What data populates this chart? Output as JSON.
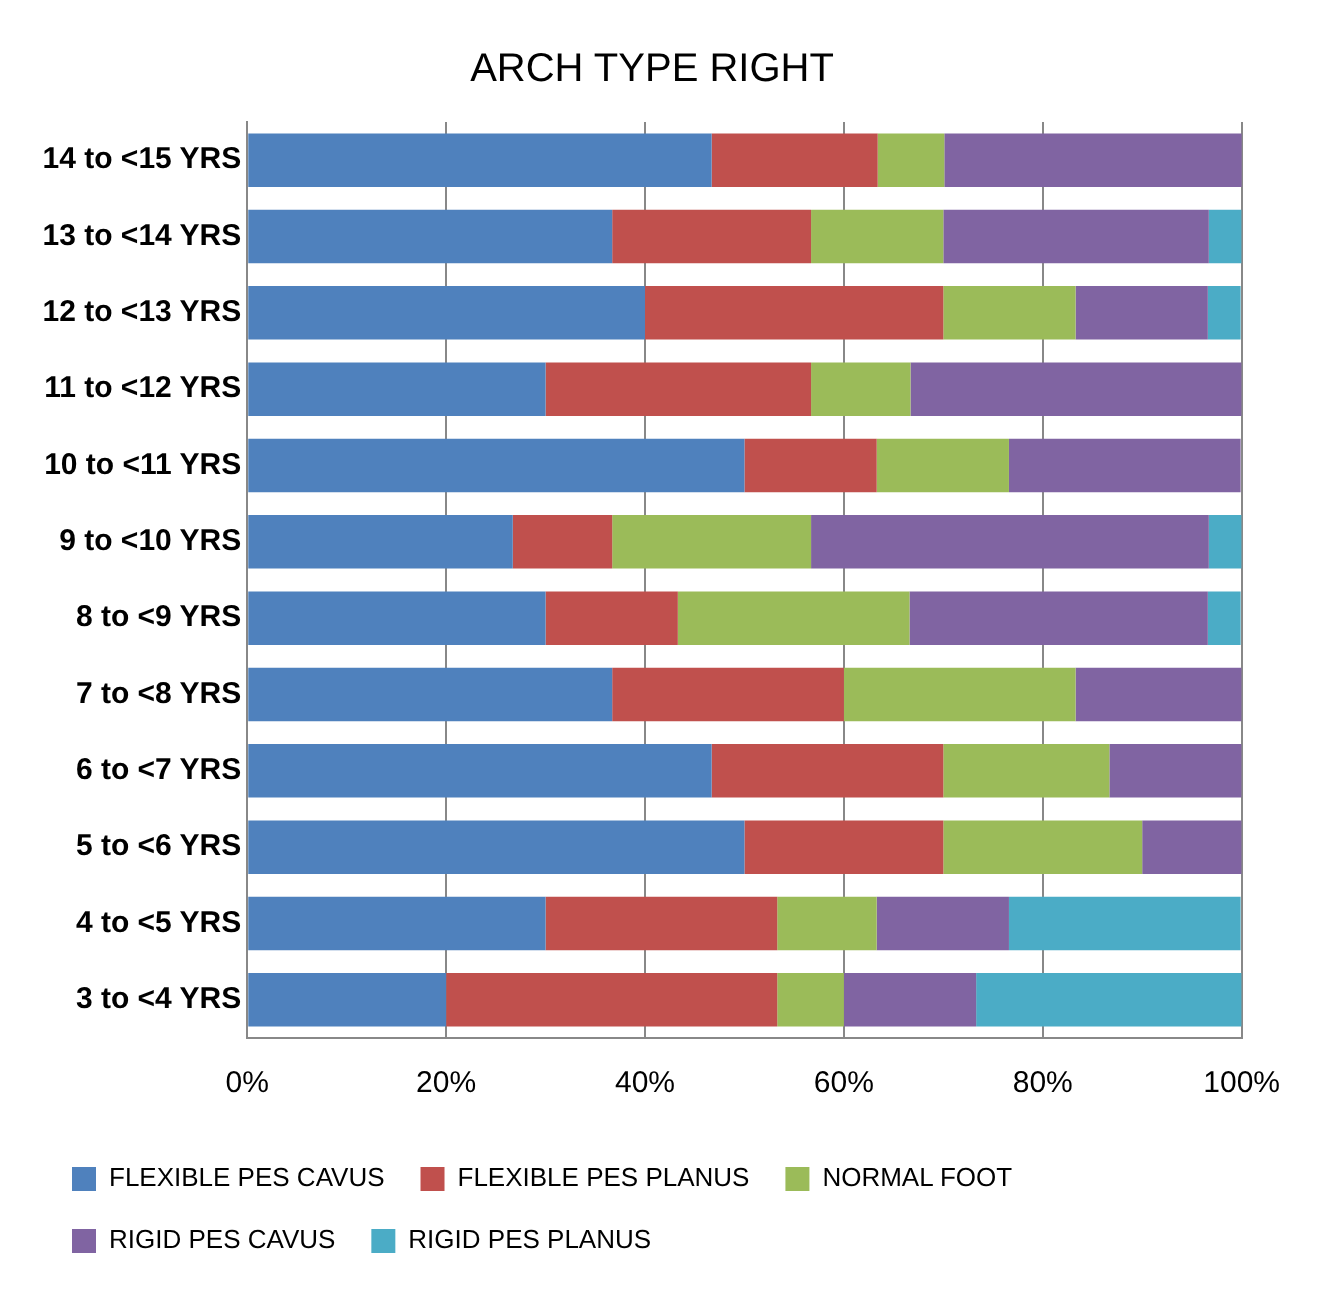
{
  "chart_data": {
    "type": "bar",
    "title": "ARCH TYPE RIGHT",
    "orientation": "horizontal",
    "stacked": true,
    "categories": [
      "14 to <15 YRS",
      "13 to <14 YRS",
      "12 to <13 YRS",
      "11 to <12 YRS",
      "10 to <11 YRS",
      "9 to <10 YRS",
      "8 to <9 YRS",
      "7 to <8 YRS",
      "6 to <7 YRS",
      "5 to <6 YRS",
      "4 to <5 YRS",
      "3 to <4 YRS"
    ],
    "series": [
      {
        "name": "FLEXIBLE PES CAVUS",
        "color": "#4f81bd",
        "values": [
          46.7,
          36.7,
          40,
          30,
          50,
          26.7,
          30,
          36.7,
          46.7,
          50,
          30,
          20
        ]
      },
      {
        "name": "FLEXIBLE PES PLANUS",
        "color": "#c0504d",
        "values": [
          16.7,
          20,
          30,
          26.7,
          13.3,
          10,
          13.3,
          23.3,
          23.3,
          20,
          23.3,
          33.3
        ]
      },
      {
        "name": "NORMAL FOOT",
        "color": "#9bbb59",
        "values": [
          6.7,
          13.3,
          13.3,
          10,
          13.3,
          20,
          23.3,
          23.3,
          16.7,
          20,
          10,
          6.7
        ]
      },
      {
        "name": "RIGID PES CAVUS",
        "color": "#8064a2",
        "values": [
          30,
          26.7,
          13.3,
          33.3,
          23.3,
          40,
          30,
          16.7,
          13.3,
          10,
          13.3,
          13.3
        ]
      },
      {
        "name": "RIGID PES PLANUS",
        "color": "#4bacc6",
        "values": [
          0,
          3.3,
          3.3,
          0,
          0,
          3.3,
          3.3,
          0,
          0,
          0,
          23.3,
          26.7
        ]
      }
    ],
    "xlim": [
      0,
      100
    ],
    "xticks": [
      {
        "value": 0,
        "label": "0%"
      },
      {
        "value": 20,
        "label": "20%"
      },
      {
        "value": 40,
        "label": "40%"
      },
      {
        "value": 60,
        "label": "60%"
      },
      {
        "value": 80,
        "label": "80%"
      },
      {
        "value": 100,
        "label": "100%"
      }
    ],
    "grid": "x",
    "legend": "bottom"
  }
}
